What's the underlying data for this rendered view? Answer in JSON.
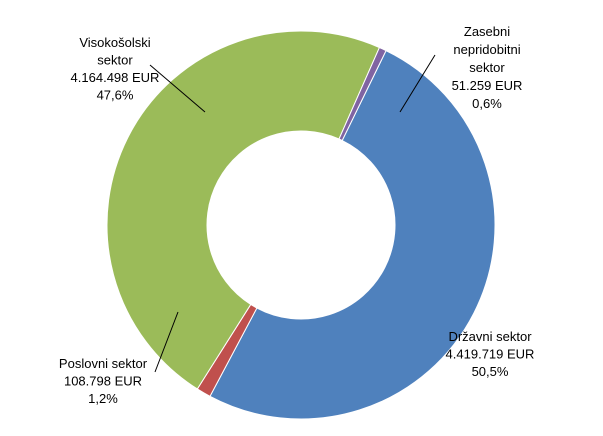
{
  "chart_data": {
    "type": "pie",
    "donut": true,
    "slices": [
      {
        "label": "Državni sektor",
        "amount": "4.419.719 EUR",
        "percent": "50,5%",
        "value": 50.5,
        "color": "#4F81BD"
      },
      {
        "label": "Poslovni sektor",
        "amount": "108.798 EUR",
        "percent": "1,2%",
        "value": 1.2,
        "color": "#C0504D"
      },
      {
        "label": "Visokošolski sektor",
        "amount": "4.164.498 EUR",
        "percent": "47,6%",
        "value": 47.6,
        "color": "#9BBB59"
      },
      {
        "label": "Zasebni nepridobitni sektor",
        "amount": "51.259 EUR",
        "percent": "0,6%",
        "value": 0.6,
        "color": "#8064A2"
      }
    ],
    "label_lines": [
      [
        "Državni sektor",
        "4.419.719 EUR",
        "50,5%"
      ],
      [
        "Poslovni sektor",
        "108.798 EUR",
        "1,2%"
      ],
      [
        "Visokošolski",
        "sektor",
        "4.164.498 EUR",
        "47,6%"
      ],
      [
        "Zasebni",
        "nepridobitni",
        "sektor",
        "51.259 EUR",
        "0,6%"
      ]
    ],
    "legend": "none"
  }
}
